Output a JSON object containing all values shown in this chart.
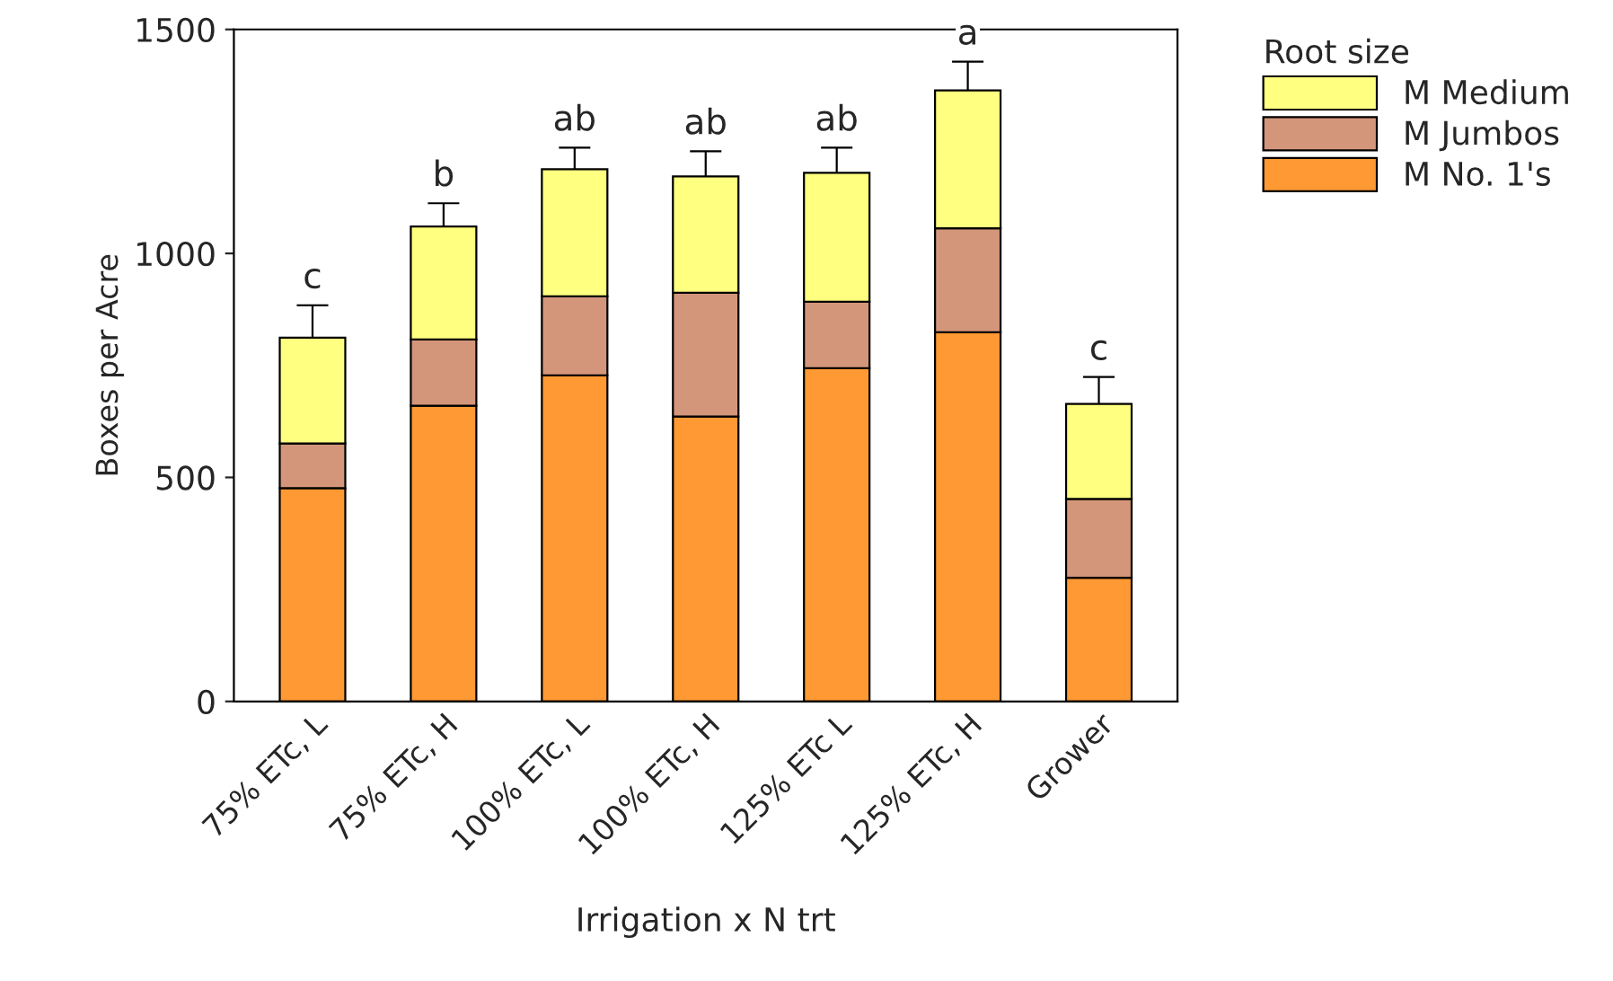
{
  "chart_data": {
    "type": "bar",
    "stacked": true,
    "xlabel": "Irrigation x N trt",
    "ylabel": "Boxes per Acre",
    "legend_title": "Root size",
    "legend": "top right",
    "grid": false,
    "categories": [
      "75% ETc, L",
      "75% ETc, H",
      "100% ETc, L",
      "100% ETc, H",
      "125% ETc L",
      "125% ETc, H",
      "Grower"
    ],
    "ylim": [
      0,
      1500
    ],
    "yticks": [
      0,
      500,
      1000,
      1500
    ],
    "series": [
      {
        "name": "M No. 1's",
        "color": "#ff9933",
        "values": [
          476,
          660,
          728,
          636,
          744,
          824,
          276
        ]
      },
      {
        "name": "M Jumbos",
        "color": "#d4967a",
        "values": [
          100,
          148,
          176,
          276,
          148,
          232,
          176
        ]
      },
      {
        "name": "M Medium",
        "color": "#ffff80",
        "values": [
          236,
          252,
          284,
          260,
          288,
          308,
          212
        ],
        "errors": [
          [
            812,
            884
          ],
          [
            1060,
            1112
          ],
          [
            1188,
            1236
          ],
          [
            1172,
            1228
          ],
          [
            1180,
            1236
          ],
          [
            1364,
            1428
          ],
          [
            664,
            724
          ]
        ]
      }
    ],
    "annotations": [
      {
        "text": "c",
        "x": "75% ETc, L",
        "y": 884
      },
      {
        "text": "b",
        "x": "75% ETc, H",
        "y": 1112
      },
      {
        "text": "ab",
        "x": "100% ETc, L",
        "y": 1236
      },
      {
        "text": "ab",
        "x": "100% ETc, H",
        "y": 1228
      },
      {
        "text": "ab",
        "x": "125% ETc L",
        "y": 1236
      },
      {
        "text": "a",
        "x": "125% ETc, H",
        "y": 1428
      },
      {
        "text": "c",
        "x": "Grower",
        "y": 724
      }
    ]
  }
}
